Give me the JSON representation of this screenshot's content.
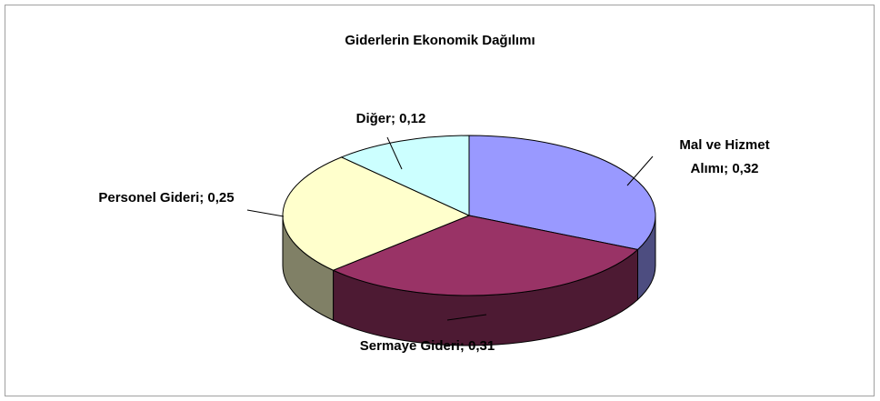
{
  "chart_data": {
    "type": "pie",
    "title": "Giderlerin Ekonomik Dağılımı",
    "values": [
      0.32,
      0.31,
      0.25,
      0.12
    ],
    "value_labels": [
      "Mal ve Hizmet Alımı; 0,32",
      "Sermaye Gideri; 0,31",
      "Personel Gideri; 0,25",
      "Diğer; 0,12"
    ],
    "colors": [
      "#9999ff",
      "#993366",
      "#ffffcc",
      "#ccffff"
    ]
  }
}
